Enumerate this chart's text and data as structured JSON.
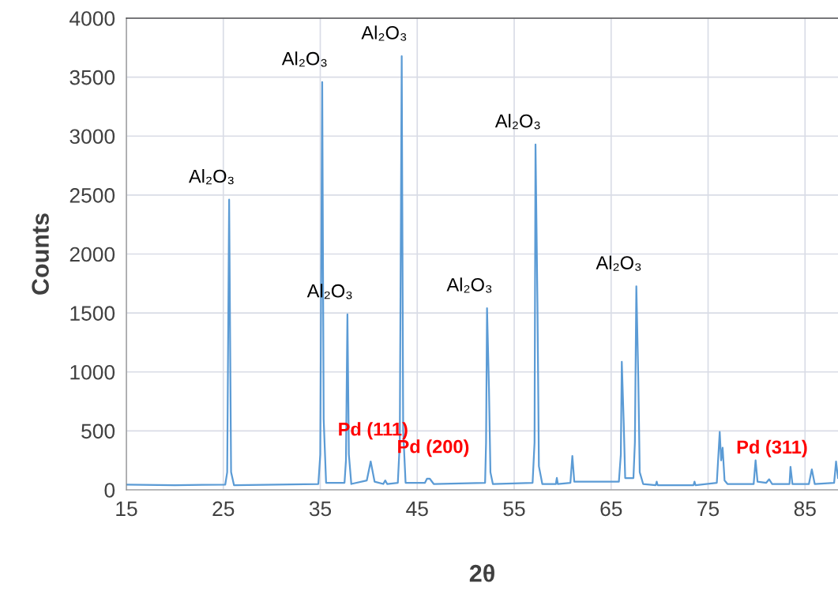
{
  "chart_data": {
    "type": "line",
    "xlabel": "2θ",
    "ylabel": "Counts",
    "xlim": [
      15,
      88.4
    ],
    "xticks": [
      15,
      25,
      35,
      45,
      55,
      65,
      75,
      85
    ],
    "ylim": [
      0,
      4000
    ],
    "yticks": [
      0,
      500,
      1000,
      1500,
      2000,
      2500,
      3000,
      3500,
      4000
    ],
    "grid": true,
    "legend": false,
    "marker": "none",
    "line_style": "solid",
    "series": [
      {
        "color": "#5b9bd5",
        "x": [
          15,
          20,
          25.2,
          25.4,
          25.6,
          25.8,
          26.1,
          34.8,
          35.0,
          35.2,
          35.35,
          35.6,
          37.5,
          37.65,
          37.8,
          37.95,
          38.2,
          39.8,
          40.2,
          40.6,
          41.5,
          41.7,
          41.9,
          43.0,
          43.2,
          43.4,
          43.55,
          43.8,
          45.8,
          46.0,
          46.3,
          46.7,
          52.0,
          52.1,
          52.2,
          52.4,
          52.55,
          52.8,
          56.9,
          57.1,
          57.2,
          57.4,
          57.55,
          57.9,
          59.3,
          59.4,
          59.5,
          60.8,
          61.0,
          61.2,
          65.8,
          66.0,
          66.1,
          66.3,
          66.45,
          67.3,
          67.45,
          67.6,
          67.8,
          67.95,
          68.3,
          69.6,
          69.7,
          69.8,
          73.5,
          73.6,
          73.7,
          75.9,
          76.2,
          76.35,
          76.5,
          76.7,
          77.0,
          79.7,
          79.9,
          80.1,
          81.0,
          81.3,
          81.6,
          83.4,
          83.5,
          83.7,
          85.4,
          85.7,
          86.0,
          88.0,
          88.2,
          88.4
        ],
        "values": [
          45,
          40,
          45,
          150,
          2461,
          150,
          40,
          50,
          300,
          3458,
          600,
          60,
          60,
          250,
          1488,
          300,
          50,
          80,
          241,
          70,
          50,
          80,
          50,
          60,
          400,
          3678,
          500,
          60,
          60,
          94,
          94,
          50,
          60,
          400,
          1541,
          858,
          150,
          50,
          60,
          400,
          2929,
          1582,
          200,
          50,
          50,
          101,
          50,
          60,
          288,
          70,
          70,
          300,
          1086,
          563,
          100,
          100,
          400,
          1727,
          952,
          150,
          50,
          40,
          70,
          40,
          40,
          70,
          40,
          60,
          491,
          250,
          357,
          80,
          50,
          50,
          250,
          70,
          60,
          90,
          50,
          50,
          196,
          50,
          50,
          174,
          50,
          60,
          241,
          100
        ]
      }
    ],
    "annotations": [
      {
        "text": "Al₂O₃",
        "x": 25.6,
        "y": 2461
      },
      {
        "text": "Al₂O₃",
        "x": 35.2,
        "y": 3458
      },
      {
        "text": "Al₂O₃",
        "x": 37.8,
        "y": 1488
      },
      {
        "text": "Al₂O₃",
        "x": 43.4,
        "y": 3678
      },
      {
        "text": "Al₂O₃",
        "x": 52.2,
        "y": 1541
      },
      {
        "text": "Al₂O₃",
        "x": 57.2,
        "y": 2929
      },
      {
        "text": "Al₂O₃",
        "x": 67.6,
        "y": 1727
      },
      {
        "text": "Pd (111)",
        "x": 40.2,
        "y": 241
      },
      {
        "text": "Pd (200)",
        "x": 46.3,
        "y": 94
      },
      {
        "text": "Pd (311)",
        "x": 81.3,
        "y": 90
      }
    ]
  }
}
